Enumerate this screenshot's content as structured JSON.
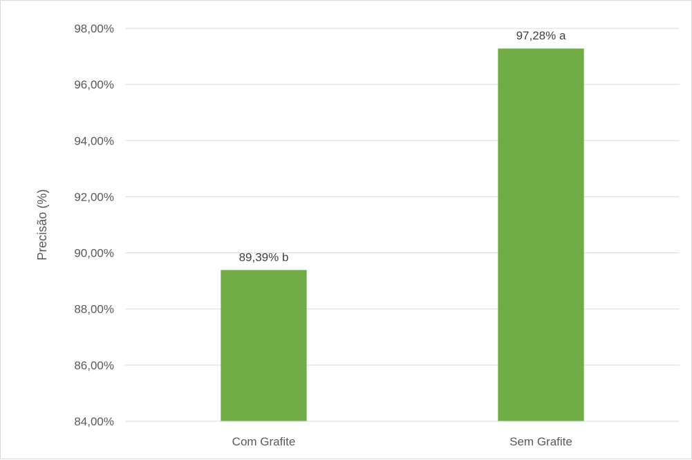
{
  "chart_data": {
    "type": "bar",
    "title": "",
    "xlabel": "",
    "ylabel": "Precisão (%)",
    "categories": [
      "Com Grafite",
      "Sem Grafite"
    ],
    "values": [
      89.39,
      97.28
    ],
    "data_labels": [
      "89,39% b",
      "97,28% a"
    ],
    "ylim": [
      84,
      98
    ],
    "yticks": [
      84,
      86,
      88,
      90,
      92,
      94,
      96,
      98
    ],
    "ytick_labels": [
      "84,00%",
      "86,00%",
      "88,00%",
      "90,00%",
      "92,00%",
      "94,00%",
      "96,00%",
      "98,00%"
    ],
    "grid": true,
    "legend": "none",
    "colors": {
      "bar": "#70ad47",
      "grid": "#d9d9d9",
      "axis": "#d9d9d9",
      "text": "#595959",
      "data_label": "#404040"
    }
  }
}
